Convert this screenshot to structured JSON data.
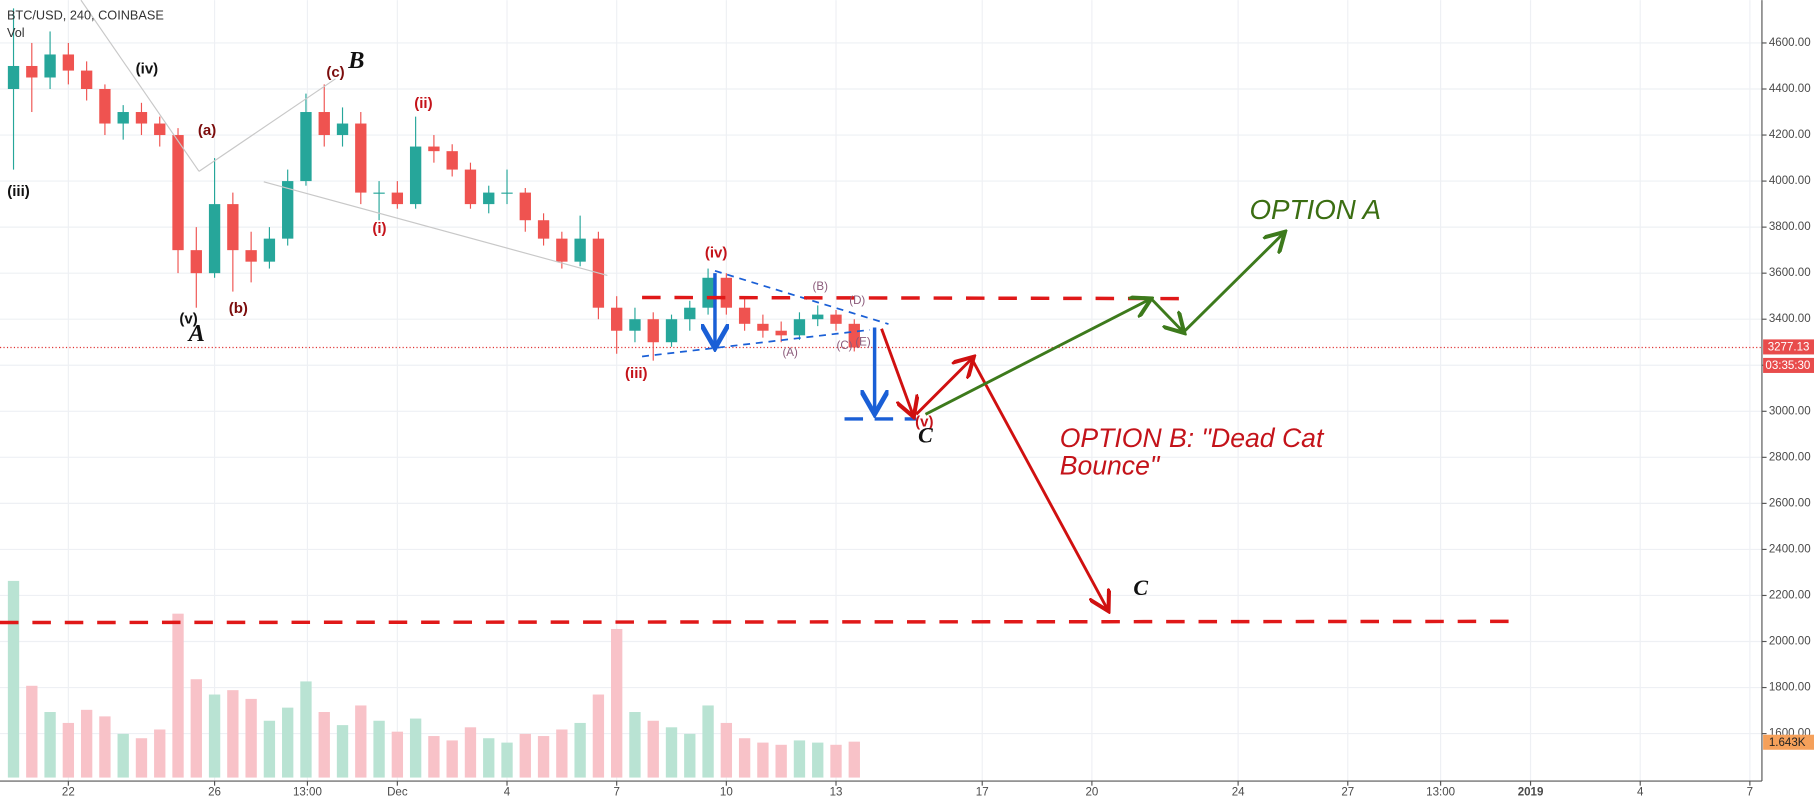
{
  "chart_data": {
    "type": "candlestick",
    "title": "BTC/USD, 240, COINBASE",
    "volume_title": "Vol",
    "x": [
      20.5,
      21,
      21.5,
      22,
      22.5,
      23,
      23.5,
      24,
      24.5,
      25,
      25.5,
      26,
      26.5,
      27,
      27.5,
      28,
      28.5,
      29,
      29.5,
      30,
      30.5,
      31,
      31.5,
      32,
      32.5,
      33,
      33.5,
      34,
      34.5,
      35,
      35.5,
      36,
      36.5,
      37,
      37.5,
      38,
      38.5,
      39,
      39.5,
      40,
      40.5,
      41,
      41.5,
      42,
      42.5,
      43,
      43.5
    ],
    "open": [
      4400,
      4500,
      4450,
      4550,
      4480,
      4400,
      4250,
      4300,
      4250,
      4200,
      3700,
      3600,
      3900,
      3700,
      3650,
      3750,
      4000,
      4300,
      4200,
      4250,
      3950,
      3950,
      3900,
      4150,
      4130,
      4050,
      3900,
      3950,
      3950,
      3830,
      3750,
      3650,
      3750,
      3450,
      3350,
      3400,
      3300,
      3400,
      3450,
      3580,
      3450,
      3380,
      3350,
      3330,
      3400,
      3420,
      3380
    ],
    "high": [
      4750,
      4600,
      4650,
      4600,
      4520,
      4420,
      4330,
      4340,
      4280,
      4230,
      3800,
      4100,
      3950,
      3780,
      3800,
      4050,
      4380,
      4420,
      4320,
      4300,
      4000,
      4000,
      4280,
      4200,
      4160,
      4080,
      3980,
      4050,
      3970,
      3860,
      3780,
      3850,
      3780,
      3500,
      3450,
      3430,
      3420,
      3480,
      3620,
      3600,
      3500,
      3420,
      3390,
      3430,
      3460,
      3440,
      3400
    ],
    "low": [
      4050,
      4300,
      4400,
      4420,
      4350,
      4200,
      4180,
      4200,
      4150,
      3600,
      3450,
      3580,
      3520,
      3560,
      3620,
      3720,
      3980,
      4150,
      4150,
      3900,
      3830,
      3880,
      3880,
      4080,
      4020,
      3880,
      3860,
      3900,
      3780,
      3720,
      3620,
      3630,
      3400,
      3250,
      3300,
      3220,
      3280,
      3350,
      3420,
      3420,
      3350,
      3320,
      3300,
      3310,
      3370,
      3350,
      3260
    ],
    "close": [
      4500,
      4450,
      4550,
      4480,
      4400,
      4250,
      4300,
      4250,
      4200,
      3700,
      3600,
      3900,
      3700,
      3650,
      3750,
      4000,
      4300,
      4200,
      4250,
      3950,
      3950,
      3900,
      4150,
      4130,
      4050,
      3900,
      3950,
      3950,
      3830,
      3750,
      3650,
      3750,
      3450,
      3350,
      3400,
      3300,
      3400,
      3450,
      3580,
      3450,
      3380,
      3350,
      3330,
      3400,
      3420,
      3380,
      3277.13
    ],
    "volume": [
      9000,
      4200,
      3000,
      2500,
      3100,
      2800,
      2000,
      1800,
      2200,
      7500,
      4500,
      3800,
      4000,
      3600,
      2600,
      3200,
      4400,
      3000,
      2400,
      3300,
      2600,
      2100,
      2700,
      1900,
      1700,
      2300,
      1800,
      1600,
      2000,
      1900,
      2200,
      2500,
      3800,
      6800,
      3000,
      2600,
      2300,
      2000,
      3300,
      2500,
      1800,
      1600,
      1500,
      1700,
      1600,
      1500,
      1643
    ],
    "up_color": "#26a69a",
    "down_color": "#ef5350",
    "up_volume_color": "#b9e3d3",
    "down_volume_color": "#f8c2c8",
    "xlim": [
      20.13,
      68.33
    ],
    "xticks": [
      {
        "value": 22,
        "label": "22"
      },
      {
        "value": 26,
        "label": "26"
      },
      {
        "value": 28.54,
        "label": "13:00"
      },
      {
        "value": 31,
        "label": "Dec"
      },
      {
        "value": 34,
        "label": "4"
      },
      {
        "value": 37,
        "label": "7"
      },
      {
        "value": 40,
        "label": "10"
      },
      {
        "value": 43,
        "label": "13"
      },
      {
        "value": 47,
        "label": "17"
      },
      {
        "value": 50,
        "label": "20"
      },
      {
        "value": 54,
        "label": "24"
      },
      {
        "value": 57,
        "label": "27"
      },
      {
        "value": 59.54,
        "label": "13:00"
      },
      {
        "value": 62,
        "label": "2019"
      },
      {
        "value": 65,
        "label": "4"
      },
      {
        "value": 68,
        "label": "7"
      }
    ],
    "ylim": [
      1409,
      4786
    ],
    "yticks": [
      {
        "value": 1600,
        "label": "1600.00"
      },
      {
        "value": 1800,
        "label": "1800.00"
      },
      {
        "value": 2000,
        "label": "2000.00"
      },
      {
        "value": 2200,
        "label": "2200.00"
      },
      {
        "value": 2400,
        "label": "2400.00"
      },
      {
        "value": 2600,
        "label": "2600.00"
      },
      {
        "value": 2800,
        "label": "2800.00"
      },
      {
        "value": 3000,
        "label": "3000.00"
      },
      {
        "value": 3200,
        "label": "3200.00"
      },
      {
        "value": 3400,
        "label": "3400.00"
      },
      {
        "value": 3600,
        "label": "3600.00"
      },
      {
        "value": 3800,
        "label": "3800.00"
      },
      {
        "value": 4000,
        "label": "4000.00"
      },
      {
        "value": 4200,
        "label": "4200.00"
      },
      {
        "value": 4400,
        "label": "4400.00"
      },
      {
        "value": 4600,
        "label": "4600.00"
      }
    ],
    "grid": true,
    "last_price_label": "3277.13",
    "countdown": "03:35:30",
    "last_volume_label": "1.643K",
    "annotations": [
      "(iii)",
      "(iv)",
      "(v)",
      "A",
      "(a)",
      "(b)",
      "(c)",
      "B",
      "(i)",
      "(ii)",
      "(iii)",
      "(iv)",
      "(v)",
      "C",
      "(A)",
      "(B)",
      "(C)",
      "(D)",
      "(E)",
      "OPTION A",
      "OPTION B: \"Dead Cat",
      "Bounce\"",
      "C"
    ]
  }
}
